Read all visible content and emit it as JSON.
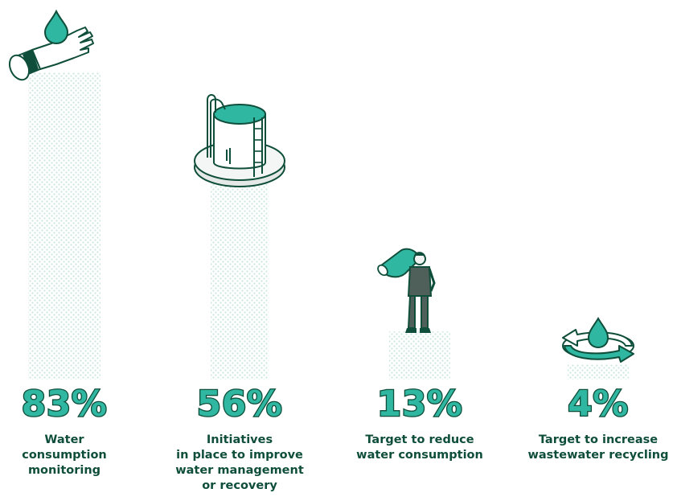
{
  "chart_data": {
    "type": "bar",
    "categories": [
      "Water\nconsumption\nmonitoring",
      "Initiatives\nin place to improve\nwater management\nor recovery",
      "Target to reduce\nwater consumption",
      "Target to increase\nwastewater recycling"
    ],
    "values": [
      83,
      56,
      13,
      4
    ],
    "value_labels": [
      "83%",
      "56%",
      "13%",
      "4%"
    ],
    "ylim": [
      0,
      100
    ],
    "grid": false,
    "legend": "none",
    "icons": [
      "hand-water-drop-icon",
      "water-tank-icon",
      "person-carrying-water-jug-icon",
      "water-recycling-icon"
    ],
    "colors": {
      "accent": "#2fb7a2",
      "dark": "#0f4e3a",
      "bar_pattern": "#cfe9e3"
    }
  }
}
